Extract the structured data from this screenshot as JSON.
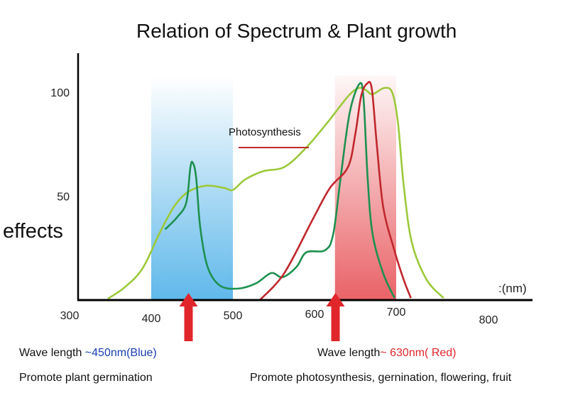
{
  "chart_data": {
    "type": "line",
    "title": "Relation of Spectrum &  Plant growth",
    "ylabel": "effects",
    "xlabel": ":(nm)",
    "xlim": [
      300,
      800
    ],
    "ylim": [
      0,
      100
    ],
    "x_ticks": [
      300,
      400,
      500,
      600,
      700,
      800
    ],
    "y_ticks": [
      50,
      100
    ],
    "grid": false,
    "bands": [
      {
        "from": 400,
        "to": 500,
        "color": "#5fb8ea"
      },
      {
        "from": 625,
        "to": 700,
        "color": "#e85a5f"
      }
    ],
    "legend": {
      "label": "Photosynthesis",
      "color": "#c0282d"
    },
    "series": [
      {
        "color": "#9cc93a",
        "points": [
          [
            347,
            0.7
          ],
          [
            367,
            6
          ],
          [
            389,
            15
          ],
          [
            410,
            32
          ],
          [
            428,
            45
          ],
          [
            445,
            52
          ],
          [
            467,
            55
          ],
          [
            489,
            54
          ],
          [
            500,
            53
          ],
          [
            515,
            58
          ],
          [
            537,
            62
          ],
          [
            563,
            64
          ],
          [
            589,
            73
          ],
          [
            615,
            85
          ],
          [
            641,
            98
          ],
          [
            654,
            102
          ],
          [
            663,
            101
          ],
          [
            671,
            99
          ],
          [
            685,
            102
          ],
          [
            695,
            100
          ],
          [
            702,
            86
          ],
          [
            709,
            56
          ],
          [
            719,
            28
          ],
          [
            737,
            10
          ],
          [
            758,
            1
          ]
        ]
      },
      {
        "color": "#1e9050",
        "points": [
          [
            417,
            34
          ],
          [
            432,
            40
          ],
          [
            443,
            47
          ],
          [
            448,
            64
          ],
          [
            451,
            66
          ],
          [
            455,
            59
          ],
          [
            460,
            35
          ],
          [
            469,
            16
          ],
          [
            484,
            7
          ],
          [
            506,
            5.5
          ],
          [
            528,
            8
          ],
          [
            547,
            13
          ],
          [
            561,
            11
          ],
          [
            578,
            16
          ],
          [
            590,
            23
          ],
          [
            613,
            24
          ],
          [
            623,
            32
          ],
          [
            632,
            59
          ],
          [
            643,
            90
          ],
          [
            655,
            104
          ],
          [
            660,
            97
          ],
          [
            665,
            59
          ],
          [
            671,
            32
          ],
          [
            684,
            13
          ],
          [
            698,
            1
          ]
        ]
      },
      {
        "color": "#c0282d",
        "points": [
          [
            533,
            0
          ],
          [
            563,
            13
          ],
          [
            598,
            39
          ],
          [
            619,
            54
          ],
          [
            641,
            64
          ],
          [
            650,
            80
          ],
          [
            657,
            98
          ],
          [
            664,
            104
          ],
          [
            670,
            102
          ],
          [
            676,
            76
          ],
          [
            684,
            45
          ],
          [
            697,
            25
          ],
          [
            709,
            10
          ],
          [
            718,
            1
          ]
        ]
      }
    ],
    "arrows_at": [
      450,
      630
    ]
  },
  "annotations": {
    "blue_prefix": "Wave length ",
    "blue_value": "~450nm(Blue)",
    "blue_desc": "Promote plant germination",
    "red_prefix": "Wave length",
    "red_value": "~ 630nm( Red)",
    "red_desc": "Promote photosynthesis, gernination, flowering, fruit",
    "blue_color": "#1a3fb0",
    "red_color": "#e0262b"
  }
}
